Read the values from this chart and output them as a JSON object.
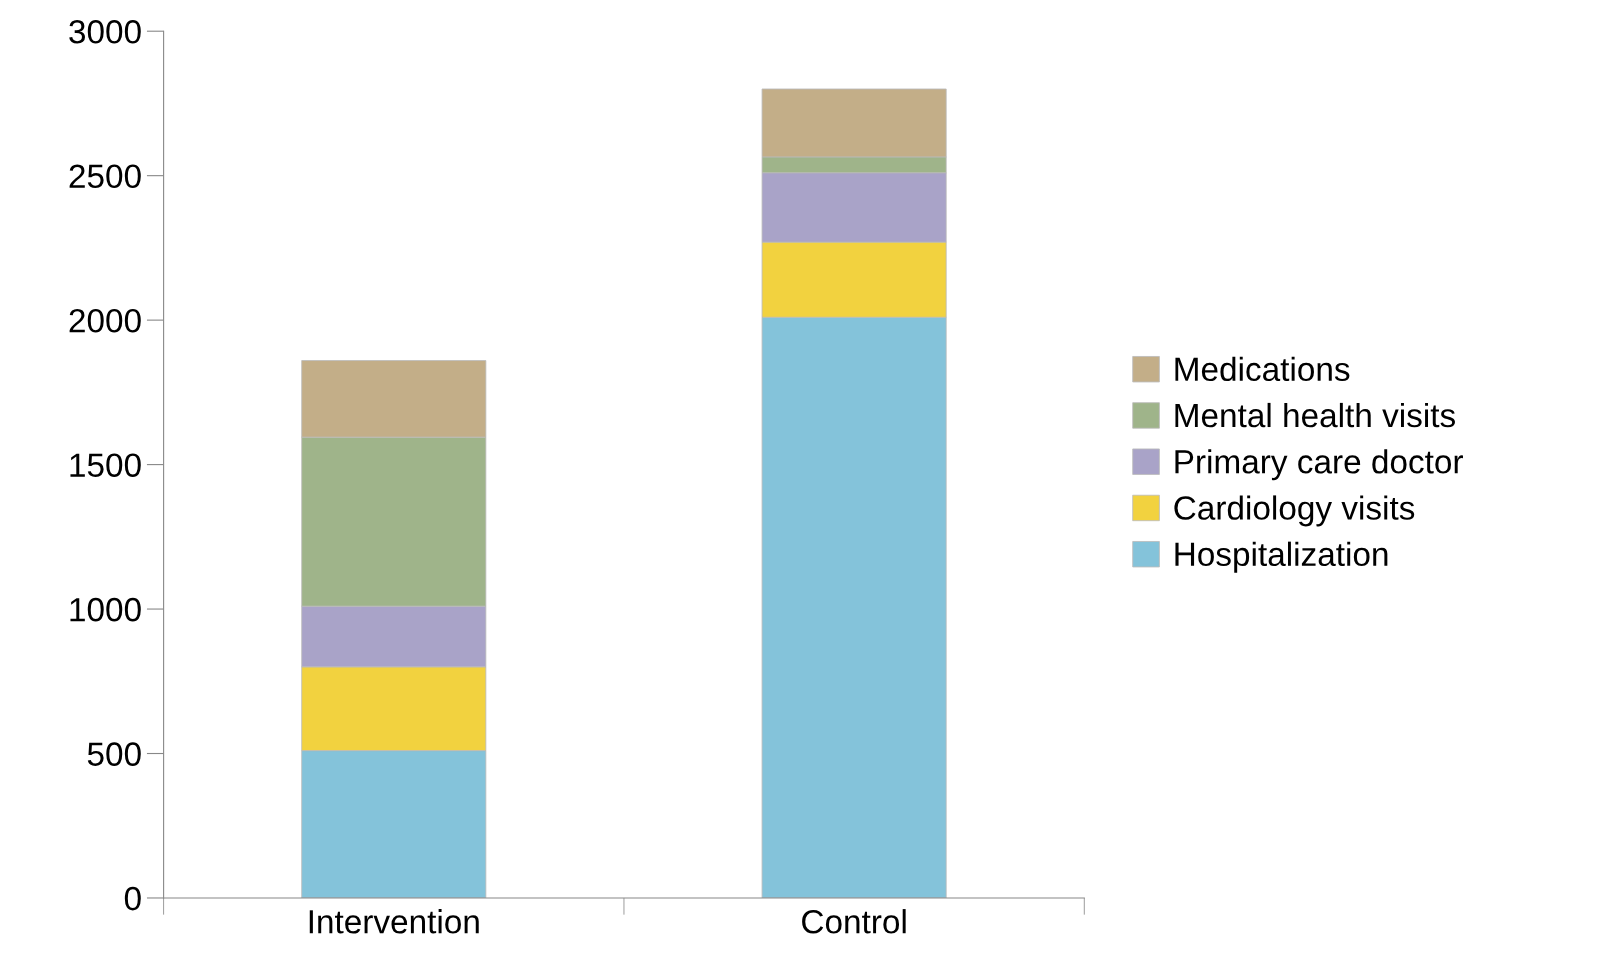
{
  "chart_data": {
    "type": "bar",
    "stacked": true,
    "categories": [
      "Intervention",
      "Control"
    ],
    "series": [
      {
        "name": "Hospitalization",
        "color": "#84c3da",
        "values": [
          510,
          2010
        ]
      },
      {
        "name": "Cardiology visits",
        "color": "#f2d23f",
        "values": [
          290,
          260
        ]
      },
      {
        "name": "Primary care doctor",
        "color": "#a9a3c8",
        "values": [
          210,
          240
        ]
      },
      {
        "name": "Mental health visits",
        "color": "#9fb48a",
        "values": [
          585,
          55
        ]
      },
      {
        "name": "Medications",
        "color": "#c3ae88",
        "values": [
          265,
          235
        ]
      }
    ],
    "ylim": [
      0,
      3000
    ],
    "yticks": [
      0,
      500,
      1000,
      1500,
      2000,
      2500,
      3000
    ],
    "grid": false,
    "legend": "right"
  }
}
